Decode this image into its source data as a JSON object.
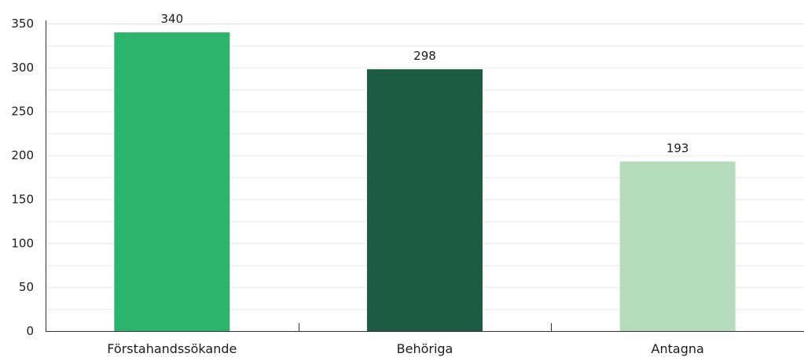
{
  "chart_data": {
    "type": "bar",
    "categories": [
      "Förstahandssökande",
      "Behöriga",
      "Antagna"
    ],
    "values": [
      340,
      298,
      193
    ],
    "data_labels": [
      "340",
      "298",
      "193"
    ],
    "colors": [
      "#2cb46a",
      "#1d5c44",
      "#b4dcbc"
    ],
    "title": "",
    "xlabel": "",
    "ylabel": "",
    "ylim": [
      0,
      350
    ],
    "y_ticks": [
      0,
      50,
      100,
      150,
      200,
      250,
      300,
      350
    ],
    "y_tick_labels": [
      "0",
      "50",
      "100",
      "150",
      "200",
      "250",
      "300",
      "350"
    ],
    "grid": true,
    "minor_grid_step": 25,
    "grid_color": "#e6e6e6",
    "axis_color": "#333333"
  }
}
